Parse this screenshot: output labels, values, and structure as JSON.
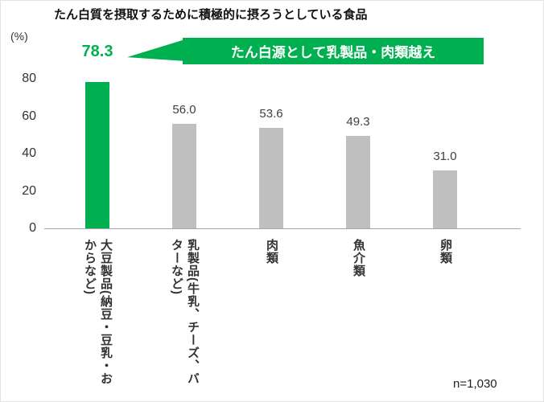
{
  "title": "たん白質を摂取するために積極的に摂ろうとしている食品",
  "axis": {
    "unit_label": "(%)"
  },
  "callout": {
    "text": "たん白源として乳製品・肉類越え"
  },
  "footnote": "n=1,030",
  "chart_data": {
    "type": "bar",
    "title": "たん白質を摂取するために積極的に摂ろうとしている食品",
    "categories": [
      "大豆製品(納豆・豆乳・おからなど)",
      "乳製品(牛乳、チーズ、バターなど)",
      "肉類",
      "魚介類",
      "卵類"
    ],
    "values": [
      78.3,
      56.0,
      53.6,
      49.3,
      31.0
    ],
    "value_labels": [
      "78.3",
      "56.0",
      "53.6",
      "49.3",
      "31.0"
    ],
    "xlabel": "",
    "ylabel": "(%)",
    "ylim": [
      0,
      80
    ],
    "yticks": [
      0,
      20,
      40,
      60,
      80
    ],
    "grid": false,
    "legend": false,
    "highlight_index": 0,
    "colors": {
      "highlight": "#00B050",
      "default": "#BFBFBF",
      "axis_text": "#333333",
      "value_text": "#404040"
    },
    "annotation": "たん白源として乳製品・肉類越え",
    "annotation_position": "top-right",
    "footnote": "n=1,030"
  }
}
